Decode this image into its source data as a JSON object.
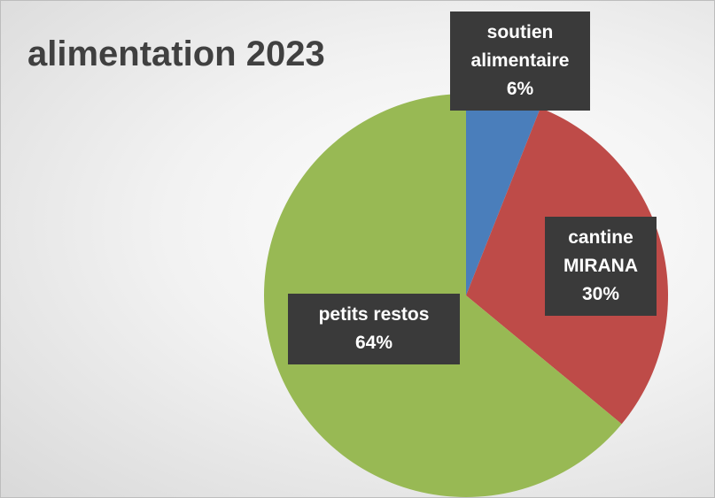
{
  "chart_data": {
    "type": "pie",
    "title": "alimentation 2023",
    "categories": [
      "soutien alimentaire",
      "cantine MIRANA",
      "petits restos"
    ],
    "values": [
      6,
      30,
      64
    ],
    "value_labels": [
      "6%",
      "30%",
      "64%"
    ],
    "colors": [
      "#4a7ebb",
      "#be4b48",
      "#98b954"
    ]
  }
}
